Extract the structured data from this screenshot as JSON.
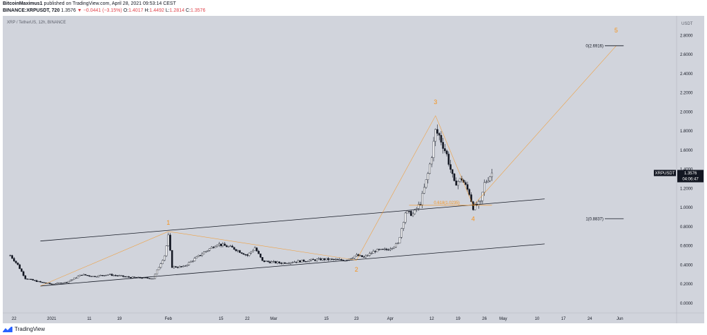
{
  "header": {
    "author": "BitcoinMaximus1",
    "published": "published on TradingView.com, April 28, 2021 09:53:14 CEST",
    "symbol": "BINANCE:XRPUSDT, 720",
    "last": "1.3576",
    "change": "−0.0441 (−3.15%)",
    "o_label": "O:",
    "o_value": "1.4017",
    "h_label": "H:",
    "h_value": "1.4492",
    "l_label": "L:",
    "l_value": "1.2814",
    "c_label": "C:",
    "c_value": "1.3576"
  },
  "footer": {
    "brand": "TradingView"
  },
  "colors": {
    "background": "#d1d4dc",
    "candle": "#131722",
    "wave_label": "#f7931a",
    "wave_line": "#f7931a",
    "channel": "#131722",
    "price_tag": "#131722"
  },
  "chart_data": {
    "type": "candlestick",
    "pair_label": "XRP / TetherUS, 12h, BINANCE",
    "y_unit": "USDT",
    "ylim": [
      -0.1,
      2.9
    ],
    "y_ticks": [
      "0.0000",
      "0.2000",
      "0.4000",
      "0.6000",
      "0.8000",
      "1.0000",
      "1.2000",
      "1.4000",
      "1.6000",
      "1.8000",
      "2.0000",
      "2.2000",
      "2.4000",
      "2.6000",
      "2.8000"
    ],
    "x_ticks": [
      "22",
      "2021",
      "11",
      "19",
      "Feb",
      "15",
      "22",
      "Mar",
      "15",
      "23",
      "Apr",
      "12",
      "19",
      "26",
      "May",
      "10",
      "17",
      "24",
      "Jun"
    ],
    "price_points": [
      {
        "d": "2020-12-21",
        "p": 0.5
      },
      {
        "d": "2020-12-23",
        "p": 0.4
      },
      {
        "d": "2020-12-25",
        "p": 0.26
      },
      {
        "d": "2020-12-29",
        "p": 0.22
      },
      {
        "d": "2021-01-01",
        "p": 0.2
      },
      {
        "d": "2021-01-05",
        "p": 0.22
      },
      {
        "d": "2021-01-09",
        "p": 0.3
      },
      {
        "d": "2021-01-12",
        "p": 0.28
      },
      {
        "d": "2021-01-16",
        "p": 0.3
      },
      {
        "d": "2021-01-22",
        "p": 0.27
      },
      {
        "d": "2021-01-28",
        "p": 0.26
      },
      {
        "d": "2021-01-31",
        "p": 0.5
      },
      {
        "d": "2021-02-01",
        "p": 0.7
      },
      {
        "d": "2021-02-02",
        "p": 0.38
      },
      {
        "d": "2021-02-05",
        "p": 0.38
      },
      {
        "d": "2021-02-10",
        "p": 0.52
      },
      {
        "d": "2021-02-14",
        "p": 0.62
      },
      {
        "d": "2021-02-18",
        "p": 0.58
      },
      {
        "d": "2021-02-22",
        "p": 0.5
      },
      {
        "d": "2021-02-24",
        "p": 0.58
      },
      {
        "d": "2021-02-26",
        "p": 0.44
      },
      {
        "d": "2021-03-03",
        "p": 0.42
      },
      {
        "d": "2021-03-08",
        "p": 0.44
      },
      {
        "d": "2021-03-14",
        "p": 0.46
      },
      {
        "d": "2021-03-20",
        "p": 0.45
      },
      {
        "d": "2021-03-23",
        "p": 0.5
      },
      {
        "d": "2021-03-25",
        "p": 0.48
      },
      {
        "d": "2021-03-28",
        "p": 0.55
      },
      {
        "d": "2021-03-31",
        "p": 0.56
      },
      {
        "d": "2021-04-03",
        "p": 0.62
      },
      {
        "d": "2021-04-05",
        "p": 0.95
      },
      {
        "d": "2021-04-07",
        "p": 0.93
      },
      {
        "d": "2021-04-09",
        "p": 1.05
      },
      {
        "d": "2021-04-11",
        "p": 1.35
      },
      {
        "d": "2021-04-12",
        "p": 1.55
      },
      {
        "d": "2021-04-13",
        "p": 1.8
      },
      {
        "d": "2021-04-14",
        "p": 1.75
      },
      {
        "d": "2021-04-16",
        "p": 1.55
      },
      {
        "d": "2021-04-18",
        "p": 1.25
      },
      {
        "d": "2021-04-20",
        "p": 1.3
      },
      {
        "d": "2021-04-22",
        "p": 1.15
      },
      {
        "d": "2021-04-23",
        "p": 1.0
      },
      {
        "d": "2021-04-25",
        "p": 1.05
      },
      {
        "d": "2021-04-26",
        "p": 1.25
      },
      {
        "d": "2021-04-28",
        "p": 1.36
      }
    ],
    "channel_lines": [
      {
        "name": "upper",
        "from": {
          "d": "2020-12-29",
          "p": 0.65
        },
        "to": {
          "d": "2021-05-12",
          "p": 1.09
        }
      },
      {
        "name": "lower",
        "from": {
          "d": "2020-12-29",
          "p": 0.18
        },
        "to": {
          "d": "2021-05-12",
          "p": 0.62
        }
      }
    ],
    "wave_path": [
      {
        "d": "2020-12-29",
        "p": 0.18
      },
      {
        "d": "2021-02-01",
        "p": 0.75
      },
      {
        "d": "2021-03-23",
        "p": 0.45
      },
      {
        "d": "2021-04-13",
        "p": 1.96
      },
      {
        "d": "2021-04-23",
        "p": 1.02
      },
      {
        "d": "2021-05-31",
        "p": 2.69
      }
    ],
    "wave_labels": [
      {
        "text": "1",
        "d": "2021-02-01",
        "p": 0.82
      },
      {
        "text": "2",
        "d": "2021-03-23",
        "p": 0.33
      },
      {
        "text": "3",
        "d": "2021-04-13",
        "p": 2.08
      },
      {
        "text": "4",
        "d": "2021-04-23",
        "p": 0.86
      },
      {
        "text": "5",
        "d": "2021-05-31",
        "p": 2.83
      }
    ],
    "fib_levels": [
      {
        "label": "0(2.6916)",
        "p": 2.6916
      },
      {
        "label": "1(0.8837)",
        "p": 0.8837
      },
      {
        "label": "0.618(1.0235)",
        "p": 1.0235
      }
    ],
    "last_price": {
      "symbol": "XRPUSDT",
      "value": "1.3576",
      "countdown": "04:06:47",
      "p": 1.3576
    }
  }
}
